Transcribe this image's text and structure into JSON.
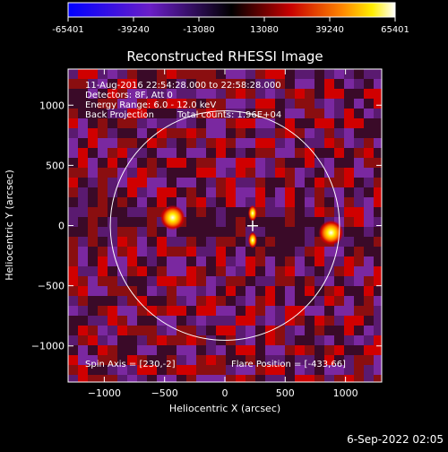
{
  "colorbar": {
    "ticks": [
      "-65401",
      "-39240",
      "-13080",
      "13080",
      "39240",
      "65401"
    ],
    "tick_values": [
      -65401,
      -39240,
      -13080,
      13080,
      39240,
      65401
    ],
    "range": [
      -65401,
      65401
    ],
    "colormap": "blue-purple-black-red-orange-yellow-white"
  },
  "plot": {
    "title": "Reconstructed RHESSI Image",
    "xlabel": "Heliocentric X (arcsec)",
    "ylabel": "Heliocentric Y (arcsec)",
    "x_ticks": [
      -1000,
      -500,
      0,
      500,
      1000
    ],
    "y_ticks": [
      -1000,
      -500,
      0,
      500,
      1000
    ],
    "xlim": [
      -1300,
      1300
    ],
    "ylim": [
      -1300,
      1300
    ],
    "solar_limb_radius": 950,
    "sources": [
      {
        "x": -433,
        "y": 66
      },
      {
        "x": 880,
        "y": -60
      }
    ],
    "flare_marker": {
      "x": 230,
      "y": -2
    },
    "info_lines": [
      "11-Aug-2016 22:54:28.000 to 22:58:28.000",
      "Detectors: 8F, Att 0",
      "Energy Range: 6.0 - 12.0 keV",
      "Back Projection",
      "Total counts: 1.96E+04"
    ],
    "spin_axis": "Spin Axis = [230,-2]",
    "flare_position": "Flare Position = [-433,66]"
  },
  "footer": {
    "date": "6-Sep-2022 02:05"
  }
}
